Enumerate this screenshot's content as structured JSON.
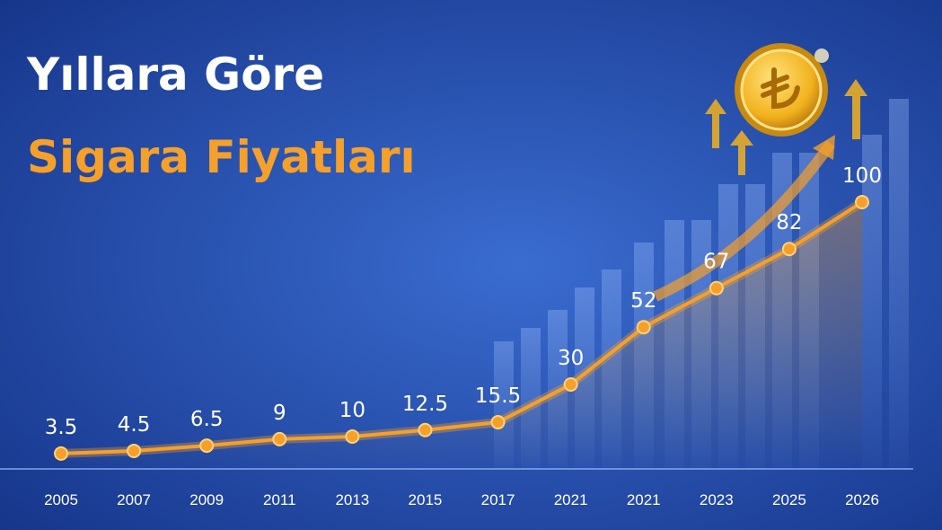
{
  "chart_data": {
    "type": "line",
    "title": "Yıllara Göre",
    "subtitle": "Sigara Fiyatları",
    "categories": [
      "2005",
      "2007",
      "2009",
      "2011",
      "2013",
      "2015",
      "2017",
      "2021",
      "2021",
      "2023",
      "2025",
      "2026"
    ],
    "values": [
      3.5,
      4.5,
      6.5,
      9,
      10,
      12.5,
      15.5,
      30,
      52,
      67,
      82,
      100
    ],
    "color": "#f5a02a"
  }
}
